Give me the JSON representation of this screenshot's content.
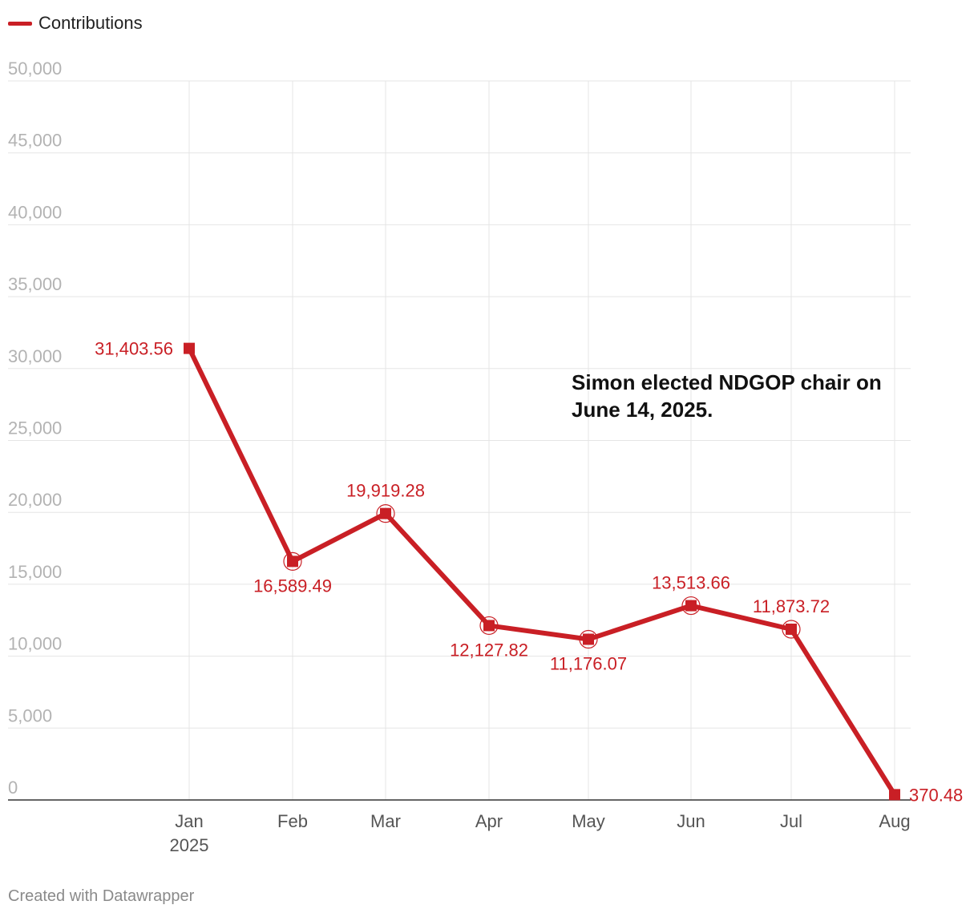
{
  "chart_data": {
    "type": "line",
    "title": "",
    "xlabel": "",
    "ylabel": "",
    "categories": [
      "Jan",
      "Feb",
      "Mar",
      "Apr",
      "May",
      "Jun",
      "Jul",
      "Aug"
    ],
    "year_label": "2025",
    "series": [
      {
        "name": "Contributions",
        "color": "#c91f25",
        "values": [
          31403.56,
          16589.49,
          19919.28,
          12127.82,
          11176.07,
          13513.66,
          11873.72,
          370.48
        ],
        "value_labels": [
          "31,403.56",
          "16,589.49",
          "19,919.28",
          "12,127.82",
          "11,176.07",
          "13,513.66",
          "11,873.72",
          "370.48"
        ],
        "label_position": [
          "left",
          "below",
          "above",
          "below",
          "below",
          "above",
          "above",
          "right"
        ]
      }
    ],
    "ylim": [
      0,
      50000
    ],
    "yticks": [
      0,
      5000,
      10000,
      15000,
      20000,
      25000,
      30000,
      35000,
      40000,
      45000,
      50000
    ],
    "ytick_labels": [
      "0",
      "5,000",
      "10,000",
      "15,000",
      "20,000",
      "25,000",
      "30,000",
      "35,000",
      "40,000",
      "45,000",
      "50,000"
    ],
    "grid": true,
    "legend": "top-left",
    "annotation": {
      "lines": [
        "Simon elected NDGOP chair on",
        "June 14, 2025."
      ]
    }
  },
  "legend_label": "Contributions",
  "footer": "Created with Datawrapper",
  "colors": {
    "series": "#c91f25",
    "grid": "#e5e5e5",
    "axis": "#333333"
  }
}
